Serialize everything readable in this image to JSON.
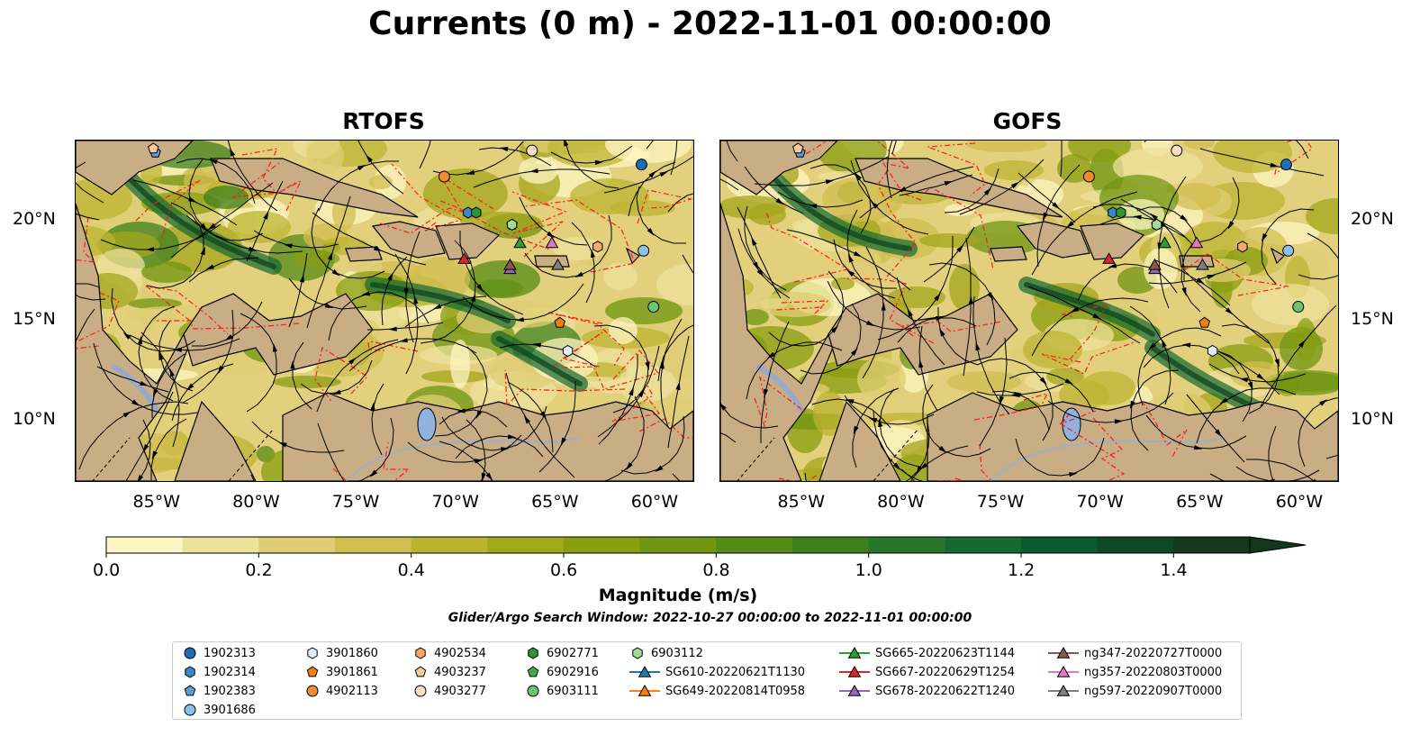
{
  "suptitle": "Currents (0 m) - 2022-11-01 00:00:00",
  "panels": [
    {
      "id": "rtofs",
      "title": "RTOFS"
    },
    {
      "id": "gofs",
      "title": "GOFS"
    }
  ],
  "map_extent": {
    "lon": [
      -89,
      -58
    ],
    "lat": [
      7,
      24
    ]
  },
  "lon_ticks": [
    {
      "value": -85,
      "label": "85°W"
    },
    {
      "value": -80,
      "label": "80°W"
    },
    {
      "value": -75,
      "label": "75°W"
    },
    {
      "value": -70,
      "label": "70°W"
    },
    {
      "value": -65,
      "label": "65°W"
    },
    {
      "value": -60,
      "label": "60°W"
    }
  ],
  "lat_ticks": [
    {
      "value": 20,
      "label": "20°N"
    },
    {
      "value": 15,
      "label": "15°N"
    },
    {
      "value": 10,
      "label": "10°N"
    }
  ],
  "colorbar": {
    "label": "Magnitude (m/s)",
    "range": [
      0,
      1.5
    ],
    "ticks": [
      {
        "value": 0.0,
        "label": "0.0"
      },
      {
        "value": 0.2,
        "label": "0.2"
      },
      {
        "value": 0.4,
        "label": "0.4"
      },
      {
        "value": 0.6,
        "label": "0.6"
      },
      {
        "value": 0.8,
        "label": "0.8"
      },
      {
        "value": 1.0,
        "label": "1.0"
      },
      {
        "value": 1.2,
        "label": "1.2"
      },
      {
        "value": 1.4,
        "label": "1.4"
      }
    ],
    "colors": [
      "#fdf5c2",
      "#ede29b",
      "#dfcd74",
      "#d0be50",
      "#bcb431",
      "#a4a61c",
      "#889e10",
      "#6f9512",
      "#568b17",
      "#3f801e",
      "#287629",
      "#166a30",
      "#0d5a2c",
      "#0f4824",
      "#13381c"
    ],
    "extend": "max"
  },
  "search_window": "Glider/Argo Search Window: 2022-10-27 00:00:00 to 2022-11-01 00:00:00",
  "legend": [
    {
      "label": "1902313",
      "marker": "circle",
      "color": "#1f6db4"
    },
    {
      "label": "1902314",
      "marker": "hexagon",
      "color": "#3a86c8"
    },
    {
      "label": "1902383",
      "marker": "pentagon",
      "color": "#5a9fd8"
    },
    {
      "label": "3901686",
      "marker": "circle",
      "color": "#8ec0ec"
    },
    {
      "label": "3901860",
      "marker": "hexagon",
      "color": "#dcecf9"
    },
    {
      "label": "3901861",
      "marker": "pentagon",
      "color": "#f0800d"
    },
    {
      "label": "4902113",
      "marker": "circle",
      "color": "#f28a30"
    },
    {
      "label": "4902534",
      "marker": "hexagon",
      "color": "#f6a868"
    },
    {
      "label": "4903237",
      "marker": "pentagon",
      "color": "#f9c89b"
    },
    {
      "label": "4903277",
      "marker": "circle",
      "color": "#fde0c4"
    },
    {
      "label": "6902771",
      "marker": "hexagon",
      "color": "#2e9436"
    },
    {
      "label": "6902916",
      "marker": "pentagon",
      "color": "#45ab4a"
    },
    {
      "label": "6903111",
      "marker": "circle",
      "color": "#6cc46c"
    },
    {
      "label": "6903112",
      "marker": "hexagon",
      "color": "#a2dc98"
    },
    {
      "label": "SG610-20220621T1130",
      "marker": "triangle-line",
      "color": "#1f77b4"
    },
    {
      "label": "SG649-20220814T0958",
      "marker": "triangle-line",
      "color": "#ff7f0e"
    },
    {
      "label": "SG665-20220623T1144",
      "marker": "triangle-line",
      "color": "#2ca02c"
    },
    {
      "label": "SG667-20220629T1254",
      "marker": "triangle-line",
      "color": "#d62728"
    },
    {
      "label": "SG678-20220622T1240",
      "marker": "triangle-line",
      "color": "#9467bd"
    },
    {
      "label": "ng347-20220727T0000",
      "marker": "triangle-line",
      "color": "#8c564b"
    },
    {
      "label": "ng357-20220803T0000",
      "marker": "triangle-line",
      "color": "#e377c2"
    },
    {
      "label": "ng597-20220907T0000",
      "marker": "triangle-line",
      "color": "#7f7f7f"
    }
  ],
  "chart_data": [
    {
      "type": "scatter",
      "title": "RTOFS",
      "xlabel": "",
      "ylabel": "",
      "xlim": [
        -89,
        -58
      ],
      "ylim": [
        7,
        24
      ],
      "series": [
        {
          "name": "1902313",
          "points": [
            {
              "lon": -60.6,
              "lat": 22.8
            }
          ]
        },
        {
          "name": "1902314",
          "points": [
            {
              "lon": -69.3,
              "lat": 20.4
            }
          ]
        },
        {
          "name": "1902383",
          "points": [
            {
              "lon": -85.0,
              "lat": 23.4
            }
          ]
        },
        {
          "name": "3901686",
          "points": [
            {
              "lon": -60.5,
              "lat": 18.5
            }
          ]
        },
        {
          "name": "3901860",
          "points": [
            {
              "lon": -64.3,
              "lat": 13.5
            }
          ]
        },
        {
          "name": "3901861",
          "points": [
            {
              "lon": -64.7,
              "lat": 14.9
            }
          ]
        },
        {
          "name": "4902113",
          "points": [
            {
              "lon": -70.5,
              "lat": 22.2
            }
          ]
        },
        {
          "name": "4902534",
          "points": [
            {
              "lon": -62.8,
              "lat": 18.7
            }
          ]
        },
        {
          "name": "4903237",
          "points": [
            {
              "lon": -85.1,
              "lat": 23.6
            }
          ]
        },
        {
          "name": "4903277",
          "points": [
            {
              "lon": -66.1,
              "lat": 23.5
            }
          ]
        },
        {
          "name": "6902771",
          "points": [
            {
              "lon": -68.9,
              "lat": 20.4
            }
          ]
        },
        {
          "name": "6902916",
          "points": [
            {
              "lon": -67.1,
              "lat": 19.8
            }
          ]
        },
        {
          "name": "6903111",
          "points": [
            {
              "lon": -60.0,
              "lat": 15.7
            }
          ]
        },
        {
          "name": "6903112",
          "points": [
            {
              "lon": -67.1,
              "lat": 19.8
            }
          ]
        },
        {
          "name": "SG665-20220623T1144",
          "points": [
            {
              "lon": -66.7,
              "lat": 18.9
            }
          ]
        },
        {
          "name": "SG667-20220629T1254",
          "points": [
            {
              "lon": -69.5,
              "lat": 18.1
            }
          ]
        },
        {
          "name": "SG678-20220622T1240",
          "points": [
            {
              "lon": -67.2,
              "lat": 17.6
            }
          ]
        },
        {
          "name": "ng347-20220727T0000",
          "points": [
            {
              "lon": -67.2,
              "lat": 17.8
            }
          ]
        },
        {
          "name": "ng357-20220803T0000",
          "points": [
            {
              "lon": -65.1,
              "lat": 18.9
            }
          ]
        },
        {
          "name": "ng597-20220907T0000",
          "points": [
            {
              "lon": -64.8,
              "lat": 17.8
            }
          ]
        }
      ]
    },
    {
      "type": "scatter",
      "title": "GOFS",
      "xlabel": "",
      "ylabel": "",
      "xlim": [
        -89,
        -58
      ],
      "ylim": [
        7,
        24
      ],
      "series": [
        {
          "name": "1902313",
          "points": [
            {
              "lon": -60.6,
              "lat": 22.8
            }
          ]
        },
        {
          "name": "1902314",
          "points": [
            {
              "lon": -69.3,
              "lat": 20.4
            }
          ]
        },
        {
          "name": "1902383",
          "points": [
            {
              "lon": -85.0,
              "lat": 23.4
            }
          ]
        },
        {
          "name": "3901686",
          "points": [
            {
              "lon": -60.5,
              "lat": 18.5
            }
          ]
        },
        {
          "name": "3901860",
          "points": [
            {
              "lon": -64.3,
              "lat": 13.5
            }
          ]
        },
        {
          "name": "3901861",
          "points": [
            {
              "lon": -64.7,
              "lat": 14.9
            }
          ]
        },
        {
          "name": "4902113",
          "points": [
            {
              "lon": -70.5,
              "lat": 22.2
            }
          ]
        },
        {
          "name": "4902534",
          "points": [
            {
              "lon": -62.8,
              "lat": 18.7
            }
          ]
        },
        {
          "name": "4903237",
          "points": [
            {
              "lon": -85.1,
              "lat": 23.6
            }
          ]
        },
        {
          "name": "4903277",
          "points": [
            {
              "lon": -66.1,
              "lat": 23.5
            }
          ]
        },
        {
          "name": "6902771",
          "points": [
            {
              "lon": -68.9,
              "lat": 20.4
            }
          ]
        },
        {
          "name": "6902916",
          "points": [
            {
              "lon": -67.1,
              "lat": 19.8
            }
          ]
        },
        {
          "name": "6903111",
          "points": [
            {
              "lon": -60.0,
              "lat": 15.7
            }
          ]
        },
        {
          "name": "6903112",
          "points": [
            {
              "lon": -67.1,
              "lat": 19.8
            }
          ]
        },
        {
          "name": "SG665-20220623T1144",
          "points": [
            {
              "lon": -66.7,
              "lat": 18.9
            }
          ]
        },
        {
          "name": "SG667-20220629T1254",
          "points": [
            {
              "lon": -69.5,
              "lat": 18.1
            }
          ]
        },
        {
          "name": "SG678-20220622T1240",
          "points": [
            {
              "lon": -67.2,
              "lat": 17.6
            }
          ]
        },
        {
          "name": "ng347-20220727T0000",
          "points": [
            {
              "lon": -67.2,
              "lat": 17.8
            }
          ]
        },
        {
          "name": "ng357-20220803T0000",
          "points": [
            {
              "lon": -65.1,
              "lat": 18.9
            }
          ]
        },
        {
          "name": "ng597-20220907T0000",
          "points": [
            {
              "lon": -64.8,
              "lat": 17.8
            }
          ]
        }
      ]
    }
  ]
}
